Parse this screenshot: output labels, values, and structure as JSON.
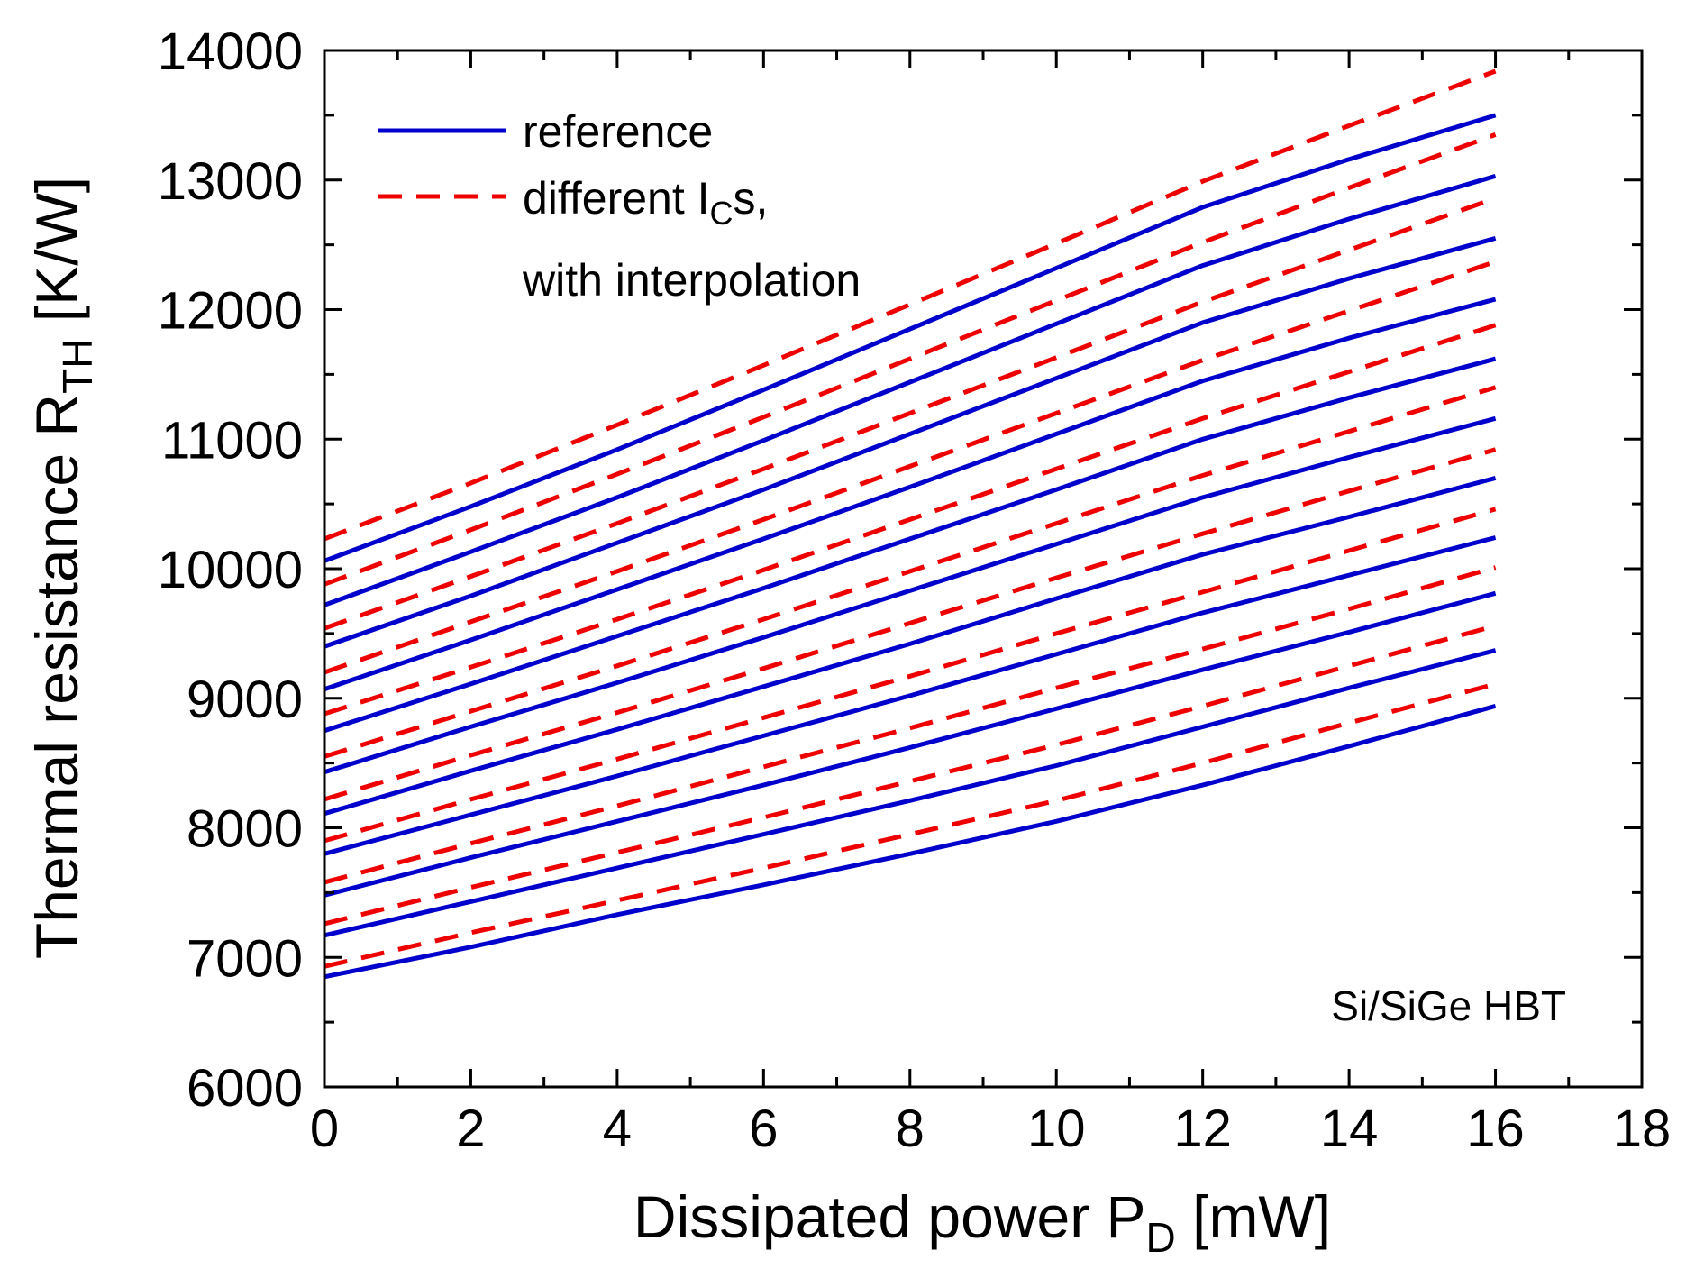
{
  "chart_data": {
    "type": "line",
    "xlabel": {
      "main": "Dissipated power P",
      "sub": "D",
      "unit": " [mW]"
    },
    "ylabel": {
      "main": "Thermal resistance R",
      "sub": "TH",
      "unit": " [K/W]"
    },
    "xlim": [
      0,
      18
    ],
    "ylim": [
      6000,
      14000
    ],
    "xticks": [
      0,
      2,
      4,
      6,
      8,
      10,
      12,
      14,
      16,
      18
    ],
    "yticks": [
      6000,
      7000,
      8000,
      9000,
      10000,
      11000,
      12000,
      13000,
      14000
    ],
    "legend": {
      "position": "top-left",
      "entries": [
        {
          "label": "reference",
          "style": "solid",
          "color": "#0000cc"
        },
        {
          "label_main": "different I",
          "label_sub": "C",
          "label_tail": "s,",
          "label_line2": "with interpolation",
          "style": "dashed",
          "color": "#ee0000"
        }
      ]
    },
    "annotation": "Si/SiGe HBT",
    "colors": {
      "reference": "#0000cc",
      "interpolated": "#ee0000",
      "axes": "#000000"
    },
    "x": [
      0,
      2,
      4,
      6,
      8,
      10,
      12,
      14,
      16
    ],
    "series": [
      {
        "name": "reference 1",
        "style": "solid",
        "values": [
          6850,
          7080,
          7330,
          7560,
          7800,
          8050,
          8330,
          8630,
          8940
        ]
      },
      {
        "name": "interpolated 1",
        "style": "dashed",
        "values": [
          6930,
          7190,
          7440,
          7690,
          7950,
          8210,
          8500,
          8810,
          9110
        ]
      },
      {
        "name": "reference 2",
        "style": "solid",
        "values": [
          7170,
          7430,
          7690,
          7950,
          8210,
          8480,
          8780,
          9080,
          9370
        ]
      },
      {
        "name": "interpolated 2",
        "style": "dashed",
        "values": [
          7260,
          7540,
          7810,
          8080,
          8360,
          8640,
          8940,
          9250,
          9560
        ]
      },
      {
        "name": "reference 3",
        "style": "solid",
        "values": [
          7480,
          7770,
          8050,
          8330,
          8620,
          8920,
          9220,
          9510,
          9810
        ]
      },
      {
        "name": "interpolated 3",
        "style": "dashed",
        "values": [
          7580,
          7880,
          8170,
          8470,
          8770,
          9080,
          9380,
          9690,
          10010
        ]
      },
      {
        "name": "reference 4",
        "style": "solid",
        "values": [
          7800,
          8100,
          8400,
          8710,
          9020,
          9340,
          9660,
          9950,
          10240
        ]
      },
      {
        "name": "interpolated 4",
        "style": "dashed",
        "values": [
          7900,
          8220,
          8530,
          8850,
          9170,
          9500,
          9820,
          10140,
          10460
        ]
      },
      {
        "name": "reference 5",
        "style": "solid",
        "values": [
          8110,
          8440,
          8760,
          9090,
          9420,
          9770,
          10110,
          10400,
          10700
        ]
      },
      {
        "name": "interpolated 5",
        "style": "dashed",
        "values": [
          8220,
          8560,
          8890,
          9230,
          9580,
          9930,
          10270,
          10600,
          10920
        ]
      },
      {
        "name": "reference 6",
        "style": "solid",
        "values": [
          8430,
          8780,
          9120,
          9470,
          9830,
          10190,
          10550,
          10860,
          11160
        ]
      },
      {
        "name": "interpolated 6",
        "style": "dashed",
        "values": [
          8550,
          8900,
          9250,
          9610,
          9980,
          10350,
          10720,
          11060,
          11400
        ]
      },
      {
        "name": "reference 7",
        "style": "solid",
        "values": [
          8750,
          9110,
          9480,
          9850,
          10230,
          10610,
          11000,
          11320,
          11620
        ]
      },
      {
        "name": "interpolated 7",
        "style": "dashed",
        "values": [
          8880,
          9240,
          9610,
          9990,
          10380,
          10770,
          11160,
          11520,
          11880
        ]
      },
      {
        "name": "reference 8",
        "style": "solid",
        "values": [
          9070,
          9450,
          9840,
          10230,
          10630,
          11040,
          11450,
          11780,
          12080
        ]
      },
      {
        "name": "interpolated 8",
        "style": "dashed",
        "values": [
          9200,
          9590,
          9980,
          10380,
          10790,
          11200,
          11610,
          11990,
          12370
        ]
      },
      {
        "name": "reference 9",
        "style": "solid",
        "values": [
          9400,
          9790,
          10200,
          10610,
          11040,
          11470,
          11900,
          12240,
          12550
        ]
      },
      {
        "name": "interpolated 9",
        "style": "dashed",
        "values": [
          9540,
          9940,
          10350,
          10770,
          11200,
          11630,
          12060,
          12460,
          12860
        ]
      },
      {
        "name": "reference 10",
        "style": "solid",
        "values": [
          9720,
          10130,
          10550,
          10990,
          11440,
          11890,
          12340,
          12700,
          13030
        ]
      },
      {
        "name": "interpolated 10",
        "style": "dashed",
        "values": [
          9880,
          10300,
          10730,
          11170,
          11620,
          12070,
          12520,
          12940,
          13350
        ]
      },
      {
        "name": "reference 11",
        "style": "solid",
        "values": [
          10060,
          10480,
          10920,
          11380,
          11850,
          12320,
          12790,
          13160,
          13500
        ]
      },
      {
        "name": "interpolated 11",
        "style": "dashed",
        "values": [
          10230,
          10660,
          11110,
          11570,
          12040,
          12510,
          12990,
          13420,
          13840
        ]
      }
    ]
  }
}
